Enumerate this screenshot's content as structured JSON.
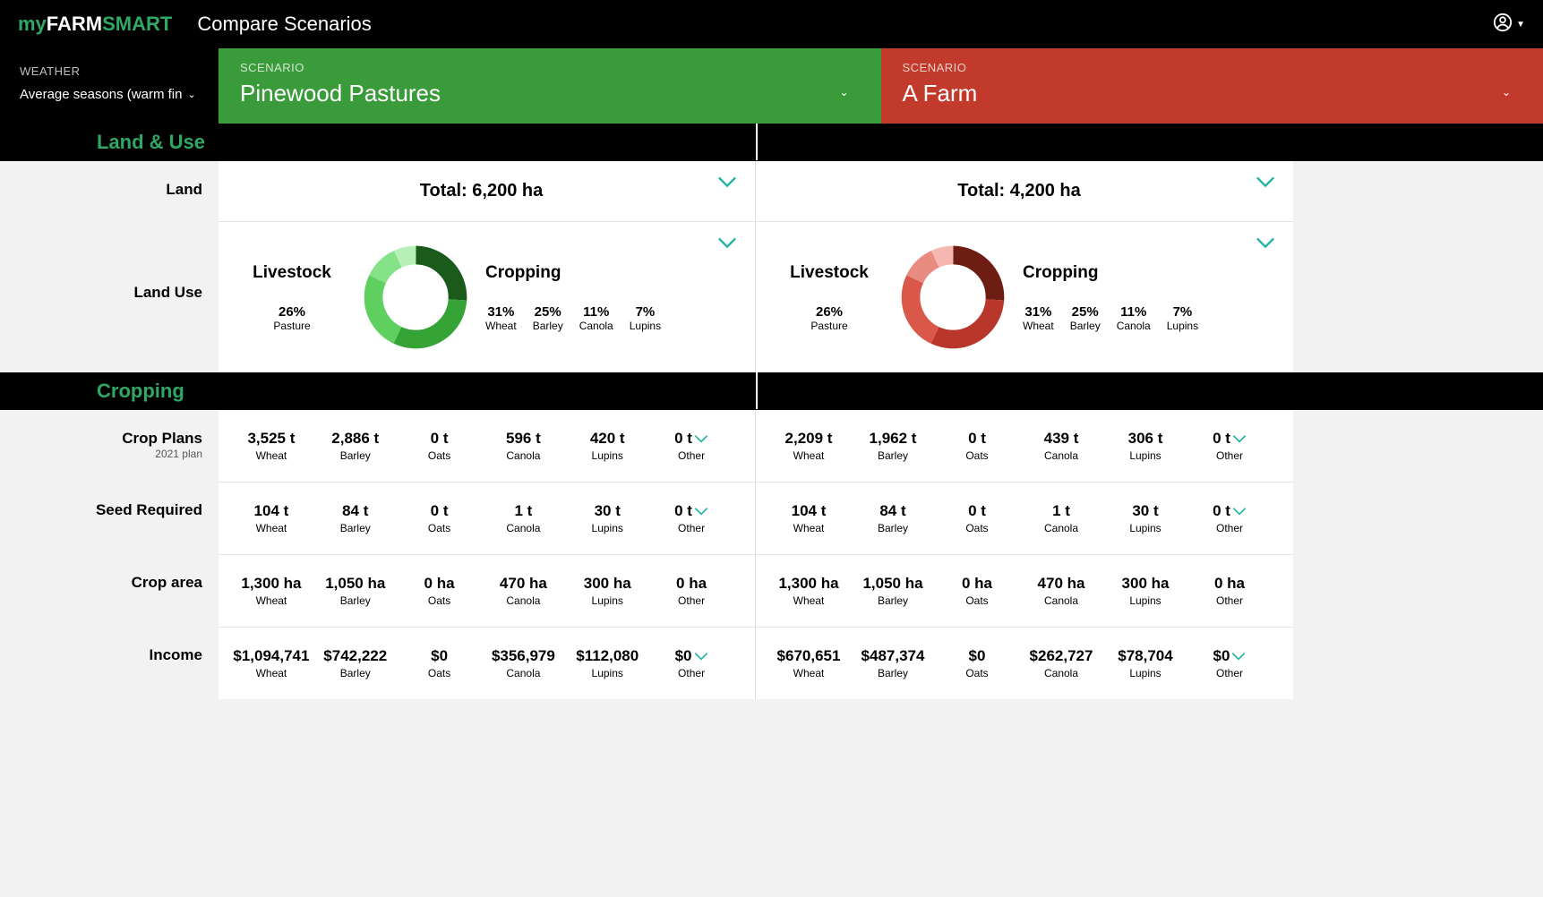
{
  "brand": {
    "p1": "my",
    "p2": "FARM",
    "p3": "SMART"
  },
  "page_title": "Compare Scenarios",
  "weather": {
    "label": "WEATHER",
    "value": "Average seasons (warm fin"
  },
  "scenarioA": {
    "label": "SCENARIO",
    "name": "Pinewood Pastures",
    "color": "#3a9b3a"
  },
  "scenarioB": {
    "label": "SCENARIO",
    "name": "A Farm",
    "color": "#c13a2b"
  },
  "sections": {
    "land_use": "Land & Use",
    "cropping": "Cropping"
  },
  "labels": {
    "land": "Land",
    "land_use": "Land Use",
    "crop_plans": "Crop Plans",
    "crop_plans_sub": "2021 plan",
    "seed_required": "Seed Required",
    "crop_area": "Crop area",
    "income": "Income",
    "livestock": "Livestock",
    "cropping_hdr": "Cropping"
  },
  "land": {
    "A_total": "Total: 6,200 ha",
    "B_total": "Total: 4,200 ha"
  },
  "landuse": {
    "livestock_pct": "26%",
    "livestock_name": "Pasture",
    "crops": [
      {
        "pct": "31%",
        "name": "Wheat"
      },
      {
        "pct": "25%",
        "name": "Barley"
      },
      {
        "pct": "11%",
        "name": "Canola"
      },
      {
        "pct": "7%",
        "name": "Lupins"
      }
    ],
    "donutA": {
      "slices": [
        {
          "value": 26,
          "color": "#1a5a1a"
        },
        {
          "value": 31,
          "color": "#36a336"
        },
        {
          "value": 25,
          "color": "#5fcf5f"
        },
        {
          "value": 11,
          "color": "#86e286"
        },
        {
          "value": 7,
          "color": "#b6f0b6"
        }
      ],
      "ring_width": 18
    },
    "donutB": {
      "slices": [
        {
          "value": 26,
          "color": "#6d1d12"
        },
        {
          "value": 31,
          "color": "#b8372a"
        },
        {
          "value": 25,
          "color": "#d9584a"
        },
        {
          "value": 11,
          "color": "#e98b80"
        },
        {
          "value": 7,
          "color": "#f4b8b0"
        }
      ],
      "ring_width": 18
    }
  },
  "cropping": {
    "cols": [
      "Wheat",
      "Barley",
      "Oats",
      "Canola",
      "Lupins",
      "Other"
    ],
    "rows": {
      "crop_plans": {
        "A": [
          "3,525 t",
          "2,886 t",
          "0 t",
          "596 t",
          "420 t",
          "0 t"
        ],
        "B": [
          "2,209 t",
          "1,962 t",
          "0 t",
          "439 t",
          "306 t",
          "0 t"
        ]
      },
      "seed_required": {
        "A": [
          "104 t",
          "84 t",
          "0 t",
          "1 t",
          "30 t",
          "0 t"
        ],
        "B": [
          "104 t",
          "84 t",
          "0 t",
          "1 t",
          "30 t",
          "0 t"
        ]
      },
      "crop_area": {
        "A": [
          "1,300 ha",
          "1,050 ha",
          "0 ha",
          "470 ha",
          "300 ha",
          "0 ha"
        ],
        "B": [
          "1,300 ha",
          "1,050 ha",
          "0 ha",
          "470 ha",
          "300 ha",
          "0 ha"
        ]
      },
      "income": {
        "A": [
          "$1,094,741",
          "$742,222",
          "$0",
          "$356,979",
          "$112,080",
          "$0"
        ],
        "B": [
          "$670,651",
          "$487,374",
          "$0",
          "$262,727",
          "$78,704",
          "$0"
        ]
      }
    }
  },
  "colors": {
    "accent_teal": "#1fb3a4",
    "accent_green": "#2fa866"
  }
}
